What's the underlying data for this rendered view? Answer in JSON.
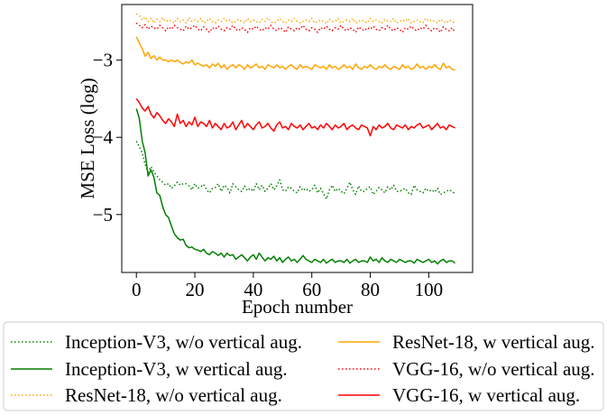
{
  "chart_data": {
    "type": "line",
    "title": "",
    "xlabel": "Epoch number",
    "ylabel": "MSE Loss (log)",
    "xlim": [
      -5,
      115
    ],
    "ylim": [
      -5.75,
      -2.28
    ],
    "xticks": [
      0,
      20,
      40,
      60,
      80,
      100
    ],
    "yticks": [
      -3,
      -4,
      -5
    ],
    "xtick_labels": [
      "0",
      "20",
      "40",
      "60",
      "80",
      "100"
    ],
    "ytick_labels": [
      "−3",
      "−4",
      "−5"
    ],
    "grid": false,
    "legend_position": "below",
    "x": [
      0,
      1,
      2,
      3,
      4,
      5,
      6,
      7,
      8,
      9,
      10,
      11,
      12,
      13,
      14,
      15,
      16,
      17,
      18,
      19,
      20,
      21,
      22,
      23,
      24,
      25,
      26,
      27,
      28,
      29,
      30,
      31,
      32,
      33,
      34,
      35,
      36,
      37,
      38,
      39,
      40,
      41,
      42,
      43,
      44,
      45,
      46,
      47,
      48,
      49,
      50,
      51,
      52,
      53,
      54,
      55,
      56,
      57,
      58,
      59,
      60,
      61,
      62,
      63,
      64,
      65,
      66,
      67,
      68,
      69,
      70,
      71,
      72,
      73,
      74,
      75,
      76,
      77,
      78,
      79,
      80,
      81,
      82,
      83,
      84,
      85,
      86,
      87,
      88,
      89,
      90,
      91,
      92,
      93,
      94,
      95,
      96,
      97,
      98,
      99,
      100,
      101,
      102,
      103,
      104,
      105,
      106,
      107,
      108,
      109
    ],
    "series": [
      {
        "name": "Inception-V3, w/o vertical aug.",
        "color": "#008000",
        "dash": "dotted",
        "values": [
          -4.05,
          -4.12,
          -4.2,
          -4.35,
          -4.45,
          -4.38,
          -4.45,
          -4.5,
          -4.55,
          -4.58,
          -4.62,
          -4.6,
          -4.66,
          -4.63,
          -4.58,
          -4.62,
          -4.6,
          -4.6,
          -4.63,
          -4.68,
          -4.6,
          -4.66,
          -4.64,
          -4.61,
          -4.68,
          -4.72,
          -4.66,
          -4.65,
          -4.6,
          -4.7,
          -4.62,
          -4.65,
          -4.72,
          -4.6,
          -4.64,
          -4.68,
          -4.7,
          -4.63,
          -4.69,
          -4.66,
          -4.7,
          -4.6,
          -4.68,
          -4.62,
          -4.7,
          -4.66,
          -4.6,
          -4.68,
          -4.63,
          -4.55,
          -4.68,
          -4.7,
          -4.64,
          -4.66,
          -4.7,
          -4.72,
          -4.64,
          -4.69,
          -4.66,
          -4.7,
          -4.68,
          -4.62,
          -4.72,
          -4.66,
          -4.73,
          -4.8,
          -4.68,
          -4.62,
          -4.7,
          -4.66,
          -4.7,
          -4.73,
          -4.66,
          -4.58,
          -4.68,
          -4.74,
          -4.63,
          -4.7,
          -4.7,
          -4.66,
          -4.64,
          -4.74,
          -4.7,
          -4.65,
          -4.68,
          -4.72,
          -4.64,
          -4.68,
          -4.62,
          -4.7,
          -4.7,
          -4.68,
          -4.66,
          -4.72,
          -4.74,
          -4.62,
          -4.68,
          -4.7,
          -4.72,
          -4.66,
          -4.7,
          -4.68,
          -4.71,
          -4.66,
          -4.74,
          -4.72,
          -4.7,
          -4.68,
          -4.7,
          -4.73
        ]
      },
      {
        "name": "Inception-V3, w vertical aug.",
        "color": "#008000",
        "dash": "solid",
        "values": [
          -3.63,
          -3.75,
          -4.05,
          -4.2,
          -4.5,
          -4.42,
          -4.52,
          -4.72,
          -4.75,
          -4.9,
          -5.0,
          -5.04,
          -5.15,
          -5.25,
          -5.3,
          -5.33,
          -5.32,
          -5.4,
          -5.43,
          -5.42,
          -5.45,
          -5.46,
          -5.48,
          -5.45,
          -5.5,
          -5.52,
          -5.48,
          -5.5,
          -5.53,
          -5.5,
          -5.55,
          -5.5,
          -5.53,
          -5.52,
          -5.58,
          -5.55,
          -5.52,
          -5.56,
          -5.6,
          -5.55,
          -5.52,
          -5.58,
          -5.5,
          -5.55,
          -5.6,
          -5.56,
          -5.58,
          -5.54,
          -5.6,
          -5.56,
          -5.62,
          -5.58,
          -5.55,
          -5.6,
          -5.58,
          -5.62,
          -5.58,
          -5.53,
          -5.58,
          -5.6,
          -5.62,
          -5.58,
          -5.6,
          -5.62,
          -5.58,
          -5.63,
          -5.6,
          -5.58,
          -5.62,
          -5.6,
          -5.6,
          -5.62,
          -5.58,
          -5.63,
          -5.6,
          -5.58,
          -5.62,
          -5.6,
          -5.6,
          -5.62,
          -5.55,
          -5.6,
          -5.58,
          -5.62,
          -5.56,
          -5.6,
          -5.62,
          -5.58,
          -5.6,
          -5.62,
          -5.58,
          -5.6,
          -5.62,
          -5.6,
          -5.6,
          -5.63,
          -5.58,
          -5.6,
          -5.62,
          -5.6,
          -5.58,
          -5.62,
          -5.6,
          -5.64,
          -5.6,
          -5.58,
          -5.62,
          -5.6,
          -5.6,
          -5.63
        ]
      },
      {
        "name": "ResNet-18, w/o vertical aug.",
        "color": "#FFA500",
        "dash": "dotted",
        "values": [
          -2.4,
          -2.42,
          -2.48,
          -2.44,
          -2.5,
          -2.46,
          -2.52,
          -2.47,
          -2.5,
          -2.45,
          -2.5,
          -2.48,
          -2.5,
          -2.52,
          -2.46,
          -2.5,
          -2.48,
          -2.52,
          -2.45,
          -2.5,
          -2.48,
          -2.5,
          -2.46,
          -2.52,
          -2.5,
          -2.46,
          -2.5,
          -2.52,
          -2.48,
          -2.5,
          -2.46,
          -2.5,
          -2.48,
          -2.52,
          -2.5,
          -2.47,
          -2.5,
          -2.52,
          -2.46,
          -2.5,
          -2.48,
          -2.5,
          -2.52,
          -2.47,
          -2.5,
          -2.45,
          -2.5,
          -2.52,
          -2.5,
          -2.46,
          -2.5,
          -2.52,
          -2.48,
          -2.5,
          -2.46,
          -2.5,
          -2.52,
          -2.5,
          -2.48,
          -2.5,
          -2.46,
          -2.52,
          -2.5,
          -2.48,
          -2.5,
          -2.53,
          -2.47,
          -2.5,
          -2.5,
          -2.46,
          -2.52,
          -2.5,
          -2.48,
          -2.5,
          -2.46,
          -2.52,
          -2.5,
          -2.48,
          -2.5,
          -2.52,
          -2.46,
          -2.5,
          -2.48,
          -2.5,
          -2.52,
          -2.47,
          -2.5,
          -2.5,
          -2.46,
          -2.52,
          -2.5,
          -2.48,
          -2.5,
          -2.46,
          -2.52,
          -2.5,
          -2.48,
          -2.5,
          -2.52,
          -2.46,
          -2.5,
          -2.48,
          -2.5,
          -2.52,
          -2.47,
          -2.5,
          -2.52,
          -2.48,
          -2.5,
          -2.52
        ]
      },
      {
        "name": "ResNet-18, w vertical aug.",
        "color": "#FFA500",
        "dash": "solid",
        "values": [
          -2.7,
          -2.78,
          -2.85,
          -2.95,
          -2.9,
          -2.98,
          -2.94,
          -3.0,
          -2.96,
          -3.0,
          -3.0,
          -3.02,
          -3.0,
          -3.02,
          -3.0,
          -3.03,
          -3.05,
          -3.02,
          -3.04,
          -3.0,
          -3.06,
          -3.04,
          -3.06,
          -3.08,
          -3.06,
          -3.1,
          -3.05,
          -3.08,
          -3.04,
          -3.1,
          -3.06,
          -3.12,
          -3.08,
          -3.06,
          -3.1,
          -3.06,
          -3.08,
          -3.12,
          -3.06,
          -3.1,
          -3.08,
          -3.05,
          -3.1,
          -3.08,
          -3.12,
          -3.06,
          -3.08,
          -3.1,
          -3.06,
          -3.1,
          -3.08,
          -3.12,
          -3.08,
          -3.06,
          -3.1,
          -3.12,
          -3.06,
          -3.1,
          -3.08,
          -3.1,
          -3.12,
          -3.06,
          -3.08,
          -3.1,
          -3.08,
          -3.12,
          -3.06,
          -3.1,
          -3.08,
          -3.12,
          -3.1,
          -3.06,
          -3.1,
          -3.08,
          -3.12,
          -3.05,
          -3.1,
          -3.12,
          -3.08,
          -3.1,
          -3.06,
          -3.1,
          -3.12,
          -3.08,
          -3.1,
          -3.06,
          -3.1,
          -3.12,
          -3.08,
          -3.1,
          -3.12,
          -3.06,
          -3.1,
          -3.08,
          -3.12,
          -3.1,
          -3.05,
          -3.1,
          -3.08,
          -3.12,
          -3.08,
          -3.1,
          -3.06,
          -3.1,
          -3.12,
          -3.04,
          -3.1,
          -3.08,
          -3.12,
          -3.13
        ]
      },
      {
        "name": "VGG-16, w/o vertical aug.",
        "color": "#FF0000",
        "dash": "dotted",
        "values": [
          -2.52,
          -2.55,
          -2.58,
          -2.54,
          -2.6,
          -2.56,
          -2.58,
          -2.6,
          -2.55,
          -2.58,
          -2.62,
          -2.57,
          -2.6,
          -2.55,
          -2.58,
          -2.6,
          -2.62,
          -2.56,
          -2.6,
          -2.58,
          -2.55,
          -2.6,
          -2.62,
          -2.57,
          -2.6,
          -2.64,
          -2.58,
          -2.6,
          -2.56,
          -2.6,
          -2.62,
          -2.58,
          -2.6,
          -2.55,
          -2.6,
          -2.62,
          -2.58,
          -2.6,
          -2.64,
          -2.58,
          -2.6,
          -2.56,
          -2.6,
          -2.62,
          -2.58,
          -2.6,
          -2.55,
          -2.6,
          -2.62,
          -2.58,
          -2.6,
          -2.64,
          -2.57,
          -2.6,
          -2.62,
          -2.58,
          -2.6,
          -2.55,
          -2.6,
          -2.62,
          -2.58,
          -2.6,
          -2.64,
          -2.58,
          -2.6,
          -2.56,
          -2.6,
          -2.62,
          -2.58,
          -2.6,
          -2.55,
          -2.6,
          -2.62,
          -2.58,
          -2.6,
          -2.64,
          -2.57,
          -2.6,
          -2.62,
          -2.58,
          -2.6,
          -2.56,
          -2.6,
          -2.62,
          -2.58,
          -2.6,
          -2.55,
          -2.6,
          -2.62,
          -2.58,
          -2.6,
          -2.64,
          -2.58,
          -2.6,
          -2.56,
          -2.6,
          -2.62,
          -2.58,
          -2.6,
          -2.55,
          -2.6,
          -2.62,
          -2.58,
          -2.6,
          -2.64,
          -2.57,
          -2.6,
          -2.62,
          -2.58,
          -2.64
        ]
      },
      {
        "name": "VGG-16, w vertical aug.",
        "color": "#FF0000",
        "dash": "solid",
        "values": [
          -3.5,
          -3.55,
          -3.62,
          -3.66,
          -3.6,
          -3.7,
          -3.75,
          -3.68,
          -3.72,
          -3.78,
          -3.82,
          -3.76,
          -3.8,
          -3.86,
          -3.7,
          -3.82,
          -3.78,
          -3.86,
          -3.8,
          -3.84,
          -3.74,
          -3.86,
          -3.8,
          -3.82,
          -3.86,
          -3.78,
          -3.88,
          -3.82,
          -3.86,
          -3.9,
          -3.82,
          -3.88,
          -3.86,
          -3.8,
          -3.9,
          -3.84,
          -3.78,
          -3.88,
          -3.82,
          -3.86,
          -3.9,
          -3.84,
          -3.8,
          -3.88,
          -3.86,
          -3.82,
          -3.88,
          -3.92,
          -3.84,
          -3.8,
          -3.88,
          -3.86,
          -3.9,
          -3.82,
          -3.86,
          -3.88,
          -3.84,
          -3.9,
          -3.86,
          -3.82,
          -3.88,
          -3.86,
          -3.9,
          -3.84,
          -3.88,
          -3.82,
          -3.86,
          -3.9,
          -3.84,
          -3.88,
          -3.86,
          -3.82,
          -3.9,
          -3.86,
          -3.84,
          -3.88,
          -3.9,
          -3.84,
          -3.86,
          -3.88,
          -3.98,
          -3.86,
          -3.9,
          -3.84,
          -3.88,
          -3.86,
          -3.82,
          -3.88,
          -3.9,
          -3.84,
          -3.86,
          -3.88,
          -3.84,
          -3.9,
          -3.86,
          -3.88,
          -3.84,
          -3.82,
          -3.88,
          -3.86,
          -3.84,
          -3.9,
          -3.86,
          -3.82,
          -3.88,
          -3.86,
          -3.9,
          -3.84,
          -3.86,
          -3.88
        ]
      }
    ],
    "legend_order": [
      0,
      1,
      2,
      3,
      4,
      5
    ]
  }
}
